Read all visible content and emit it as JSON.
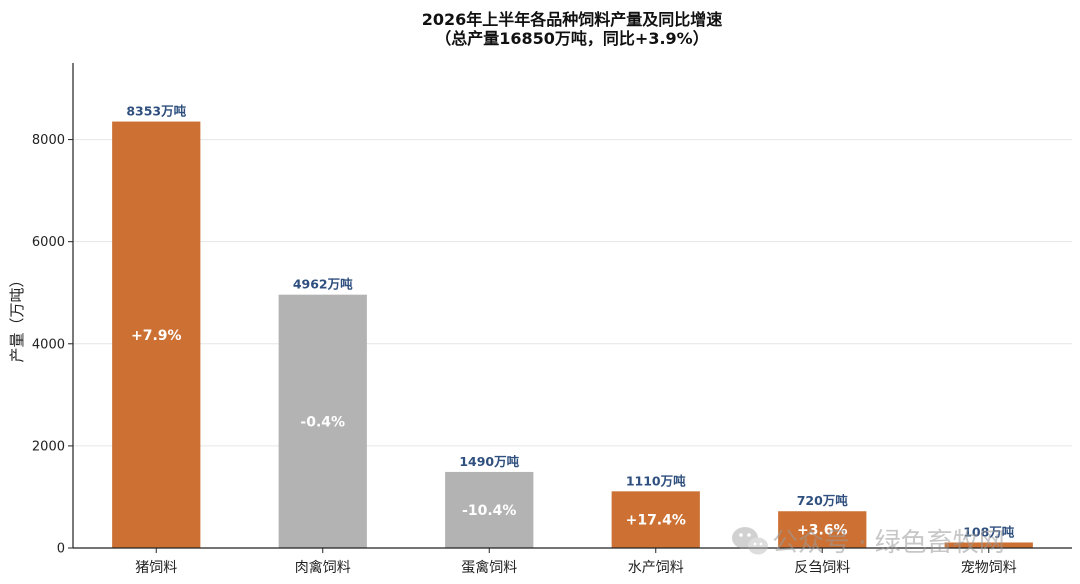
{
  "chart_data": {
    "type": "bar",
    "title": "2026年上半年各品种饲料产量及同比增速",
    "subtitle": "（总产量16850万吨，同比+3.9%）",
    "xlabel": "",
    "ylabel": "产量（万吨）",
    "ylim": [
      0,
      9500
    ],
    "yticks": [
      0,
      2000,
      4000,
      6000,
      8000
    ],
    "grid": true,
    "categories": [
      "猪饲料",
      "肉禽饲料",
      "蛋禽饲料",
      "水产饲料",
      "反刍饲料",
      "宠物饲料"
    ],
    "values": [
      8353,
      4962,
      1490,
      1110,
      720,
      108
    ],
    "value_labels": [
      "8353万吨",
      "4962万吨",
      "1490万吨",
      "1110万吨",
      "720万吨",
      "108万吨"
    ],
    "growth_labels": [
      "+7.9%",
      "-0.4%",
      "-10.4%",
      "+17.4%",
      "+3.6%",
      ""
    ],
    "bar_colors": [
      "#cc7133",
      "#b3b3b3",
      "#b3b3b3",
      "#cc7133",
      "#cc7133",
      "#cc7133"
    ]
  },
  "colors": {
    "positive_growth": "#cc7133",
    "negative_growth": "#b3b3b3",
    "value_label": "#2f4f7f",
    "grid": "#e6e6e6",
    "axis": "#222222"
  },
  "watermark": {
    "text": "公众号 · 绿色畜牧网",
    "icon": "wechat-icon"
  }
}
